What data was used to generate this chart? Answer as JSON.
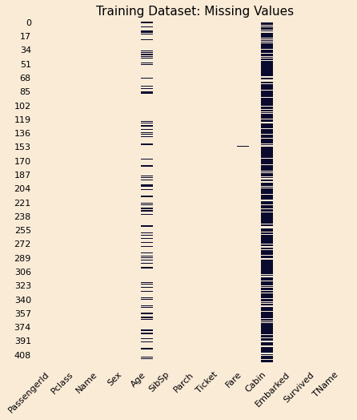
{
  "title": "Training Dataset: Missing Values",
  "columns": [
    "PassengerId",
    "Pclass",
    "Name",
    "Sex",
    "Age",
    "SibSp",
    "Parch",
    "Ticket",
    "Fare",
    "Cabin",
    "Embarked",
    "Survived",
    "TName"
  ],
  "n_rows": 418,
  "yticks": [
    0,
    17,
    34,
    51,
    68,
    85,
    102,
    119,
    136,
    153,
    170,
    187,
    204,
    221,
    238,
    255,
    272,
    289,
    306,
    323,
    340,
    357,
    374,
    391,
    408
  ],
  "background_color": "#faebd7",
  "missing_color": "#0a0a2e",
  "present_color": "#faebd7",
  "title_fontsize": 11,
  "tick_fontsize": 8,
  "fare_missing_row": 152,
  "age_missing_count": 86,
  "cabin_missing_count": 327,
  "age_seed": 12,
  "cabin_seed": 7
}
